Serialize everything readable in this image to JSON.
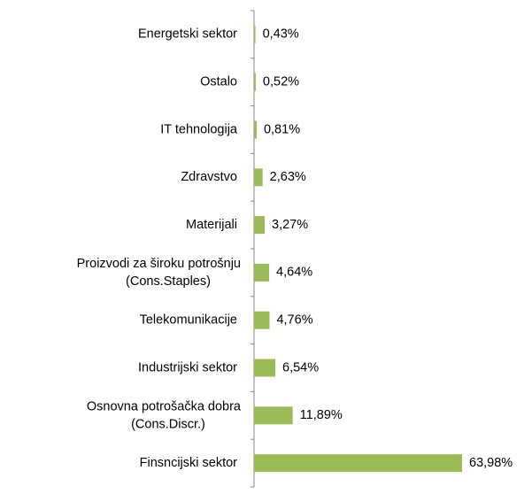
{
  "chart_data": {
    "type": "bar",
    "orientation": "horizontal",
    "categories": [
      "Energetski sektor",
      "Ostalo",
      "IT tehnologija",
      "Zdravstvo",
      "Materijali",
      "Proizvodi za široku potrošnju\n(Cons.Staples)",
      "Telekomunikacije",
      "Industrijski sektor",
      "Osnovna potrošačka dobra\n(Cons.Discr.)",
      "Finsncijski sektor"
    ],
    "values": [
      0.43,
      0.52,
      0.81,
      2.63,
      3.27,
      4.64,
      4.76,
      6.54,
      11.89,
      63.98
    ],
    "value_labels": [
      "0,43%",
      "0,52%",
      "0,81%",
      "2,63%",
      "3,27%",
      "4,64%",
      "4,76%",
      "6,54%",
      "11,89%",
      "63,98%"
    ],
    "color": "#9bbb59"
  }
}
